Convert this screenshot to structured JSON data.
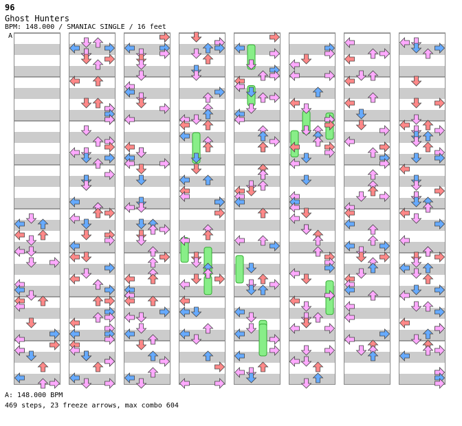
{
  "header": {
    "rank": "96",
    "title": "Ghost Hunters",
    "subtitle": "BPM: 148.000 / SMANIAC SINGLE / 16 feet",
    "bpm_marker": "A"
  },
  "footer": {
    "bpm_line": "A: 148.000 BPM",
    "stats_line": "469 steps, 23 freeze arrows, max combo 604"
  },
  "colors": {
    "stripe": "#cccccc",
    "grid": "#888888",
    "arrow_blue": "#66aaff",
    "arrow_red": "#ff8888",
    "arrow_pink": "#ffaaff",
    "freeze": "#88ee88"
  },
  "chart": {
    "type": "step-chart",
    "columns": 8,
    "measures_per_column": 8,
    "lanes": [
      "left",
      "down",
      "up",
      "right"
    ],
    "freeze_count": 23
  }
}
